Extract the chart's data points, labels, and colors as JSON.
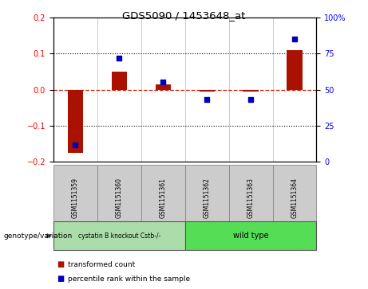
{
  "title": "GDS5090 / 1453648_at",
  "samples": [
    "GSM1151359",
    "GSM1151360",
    "GSM1151361",
    "GSM1151362",
    "GSM1151363",
    "GSM1151364"
  ],
  "transformed_count": [
    -0.175,
    0.05,
    0.015,
    -0.005,
    -0.005,
    0.11
  ],
  "percentile_rank": [
    12,
    72,
    55,
    43,
    43,
    85
  ],
  "ylim_left": [
    -0.2,
    0.2
  ],
  "ylim_right": [
    0,
    100
  ],
  "yticks_left": [
    -0.2,
    -0.1,
    0.0,
    0.1,
    0.2
  ],
  "yticks_right": [
    0,
    25,
    50,
    75,
    100
  ],
  "bar_color": "#aa1100",
  "dot_color": "#0000bb",
  "zero_line_color": "#cc2200",
  "group1_label": "cystatin B knockout Cstb-/-",
  "group2_label": "wild type",
  "group1_color": "#aaddaa",
  "group2_color": "#55dd55",
  "genotype_label": "genotype/variation",
  "legend_bar_label": "transformed count",
  "legend_dot_label": "percentile rank within the sample",
  "bar_width": 0.35,
  "fig_width": 4.61,
  "fig_height": 3.63,
  "dpi": 100
}
